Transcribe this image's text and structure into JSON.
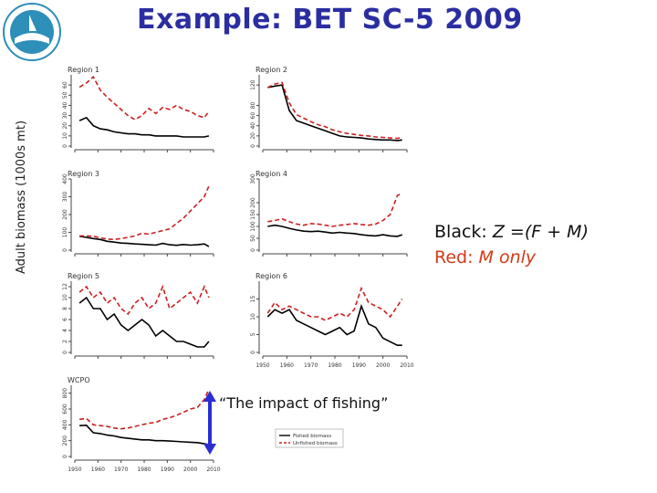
{
  "title": "Example: BET SC-5 2009",
  "y_axis_label": "Adult biomass (1000s mt)",
  "note": {
    "black_prefix": "Black: ",
    "black_formula": "Z =(F + M)",
    "red_prefix": "Red: ",
    "red_formula": "M only"
  },
  "impact_label": "“The impact of fishing”",
  "colors": {
    "title": "#2b2ea0",
    "fished": "#000000",
    "unfished": "#cc1f1f",
    "note_red": "#d43a16",
    "arrow": "#2a2fd4"
  },
  "chart_data": [
    {
      "type": "line",
      "title": "Region 1",
      "ylim": [
        0,
        70
      ],
      "yticks": [
        0,
        10,
        20,
        30,
        40,
        50,
        60
      ],
      "show_xticks": false,
      "x": [
        1952,
        1955,
        1958,
        1961,
        1964,
        1967,
        1970,
        1973,
        1976,
        1979,
        1982,
        1985,
        1988,
        1991,
        1994,
        1997,
        2000,
        2003,
        2006,
        2008
      ],
      "series": [
        {
          "name": "Fished biomass",
          "values": [
            25,
            28,
            20,
            17,
            16,
            14,
            13,
            12,
            12,
            11,
            11,
            10,
            10,
            10,
            10,
            9,
            9,
            9,
            9,
            10
          ]
        },
        {
          "name": "Unfished biomass",
          "values": [
            58,
            62,
            68,
            55,
            48,
            42,
            36,
            30,
            26,
            30,
            37,
            32,
            38,
            36,
            40,
            36,
            34,
            30,
            28,
            34
          ]
        }
      ]
    },
    {
      "type": "line",
      "title": "Region 2",
      "ylim": [
        0,
        140
      ],
      "yticks": [
        0,
        20,
        40,
        60,
        80,
        120
      ],
      "show_xticks": false,
      "x": [
        1952,
        1955,
        1958,
        1961,
        1964,
        1967,
        1970,
        1973,
        1976,
        1979,
        1982,
        1985,
        1988,
        1991,
        1994,
        1997,
        2000,
        2003,
        2006,
        2008
      ],
      "series": [
        {
          "name": "Fished biomass",
          "values": [
            115,
            118,
            120,
            70,
            50,
            45,
            40,
            35,
            30,
            25,
            20,
            18,
            17,
            16,
            14,
            13,
            12,
            12,
            11,
            12
          ]
        },
        {
          "name": "Unfished biomass",
          "values": [
            115,
            122,
            125,
            85,
            62,
            55,
            48,
            42,
            38,
            32,
            28,
            25,
            23,
            21,
            20,
            18,
            17,
            16,
            15,
            17
          ]
        }
      ]
    },
    {
      "type": "line",
      "title": "Region 3",
      "ylim": [
        0,
        400
      ],
      "yticks": [
        0,
        100,
        200,
        300,
        400
      ],
      "show_xticks": false,
      "x": [
        1952,
        1955,
        1958,
        1961,
        1964,
        1967,
        1970,
        1973,
        1976,
        1979,
        1982,
        1985,
        1988,
        1991,
        1994,
        1997,
        2000,
        2003,
        2006,
        2008
      ],
      "series": [
        {
          "name": "Fished biomass",
          "values": [
            78,
            72,
            65,
            60,
            50,
            45,
            40,
            38,
            35,
            33,
            30,
            28,
            38,
            30,
            27,
            32,
            28,
            30,
            35,
            20
          ]
        },
        {
          "name": "Unfished biomass",
          "values": [
            80,
            80,
            78,
            70,
            62,
            60,
            65,
            72,
            80,
            95,
            90,
            100,
            110,
            120,
            150,
            180,
            220,
            260,
            300,
            360
          ]
        }
      ]
    },
    {
      "type": "line",
      "title": "Region 4",
      "ylim": [
        0,
        300
      ],
      "yticks": [
        0,
        50,
        100,
        150,
        200,
        300
      ],
      "show_xticks": false,
      "x": [
        1952,
        1955,
        1958,
        1961,
        1964,
        1967,
        1970,
        1973,
        1976,
        1979,
        1982,
        1985,
        1988,
        1991,
        1994,
        1997,
        2000,
        2003,
        2006,
        2008
      ],
      "series": [
        {
          "name": "Fished biomass",
          "values": [
            100,
            105,
            100,
            92,
            85,
            80,
            78,
            80,
            76,
            72,
            75,
            72,
            70,
            65,
            62,
            60,
            65,
            60,
            58,
            65
          ]
        },
        {
          "name": "Unfished biomass",
          "values": [
            120,
            125,
            132,
            120,
            110,
            105,
            112,
            110,
            105,
            100,
            105,
            108,
            112,
            108,
            105,
            110,
            125,
            150,
            230,
            240
          ]
        }
      ]
    },
    {
      "type": "line",
      "title": "Region 5",
      "ylim": [
        0,
        13
      ],
      "yticks": [
        0,
        2,
        4,
        6,
        8,
        10,
        12
      ],
      "show_xticks": false,
      "x": [
        1952,
        1955,
        1958,
        1961,
        1964,
        1967,
        1970,
        1973,
        1976,
        1979,
        1982,
        1985,
        1988,
        1991,
        1994,
        1997,
        2000,
        2003,
        2006,
        2008
      ],
      "series": [
        {
          "name": "Fished biomass",
          "values": [
            9,
            10,
            8,
            8,
            6,
            7,
            5,
            4,
            5,
            6,
            5,
            3,
            4,
            3,
            2,
            2,
            1.5,
            1,
            1,
            2
          ]
        },
        {
          "name": "Unfished biomass",
          "values": [
            11,
            12,
            10,
            11,
            9,
            10,
            8,
            7,
            9,
            10,
            8,
            9,
            12,
            8,
            9,
            10,
            11,
            9,
            12,
            10
          ]
        }
      ]
    },
    {
      "type": "line",
      "title": "Region 6",
      "ylim": [
        0,
        20
      ],
      "yticks": [
        0,
        5,
        10,
        15
      ],
      "xticks": [
        1950,
        1960,
        1970,
        1980,
        1990,
        2000,
        2010
      ],
      "show_xticks": true,
      "x": [
        1952,
        1955,
        1958,
        1961,
        1964,
        1967,
        1970,
        1973,
        1976,
        1979,
        1982,
        1985,
        1988,
        1991,
        1994,
        1997,
        2000,
        2003,
        2006,
        2008
      ],
      "series": [
        {
          "name": "Fished biomass",
          "values": [
            10,
            12,
            11,
            12,
            9,
            8,
            7,
            6,
            5,
            6,
            7,
            5,
            6,
            13,
            8,
            7,
            4,
            3,
            2,
            2
          ]
        },
        {
          "name": "Unfished biomass",
          "values": [
            11,
            14,
            12,
            13,
            12,
            11,
            10,
            10,
            9,
            10,
            11,
            10,
            12,
            18,
            14,
            13,
            12,
            10,
            13,
            15
          ]
        }
      ]
    },
    {
      "type": "line",
      "title": "WCPO",
      "ylim": [
        0,
        900
      ],
      "yticks": [
        0,
        200,
        400,
        600,
        800
      ],
      "xticks": [
        1950,
        1960,
        1970,
        1980,
        1990,
        2000,
        2010
      ],
      "show_xticks": true,
      "legend": "bottom-right",
      "x": [
        1952,
        1955,
        1958,
        1961,
        1964,
        1967,
        1970,
        1973,
        1976,
        1979,
        1982,
        1985,
        1988,
        1991,
        1994,
        1997,
        2000,
        2003,
        2006,
        2008
      ],
      "series": [
        {
          "name": "Fished biomass",
          "values": [
            390,
            395,
            300,
            290,
            270,
            260,
            240,
            230,
            220,
            210,
            210,
            200,
            200,
            195,
            190,
            185,
            180,
            175,
            160,
            150
          ]
        },
        {
          "name": "Unfished biomass",
          "values": [
            470,
            480,
            400,
            390,
            380,
            360,
            350,
            360,
            380,
            400,
            420,
            430,
            470,
            490,
            520,
            560,
            600,
            620,
            720,
            850
          ]
        }
      ]
    }
  ]
}
